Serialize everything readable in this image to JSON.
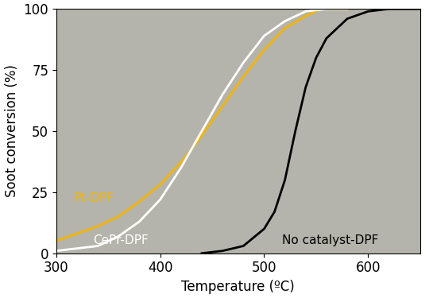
{
  "chart_data": {
    "type": "line",
    "x_label": "Temperature (ºC)",
    "y_label": "Soot conversion (%)",
    "xlim": [
      300,
      650
    ],
    "xticks": [
      300,
      400,
      500,
      600
    ],
    "ylim": [
      0,
      100
    ],
    "yticks": [
      0,
      25,
      50,
      75,
      100
    ],
    "grid": false,
    "series": [
      {
        "name": "Pt-DPF",
        "color": "#f5b400",
        "line_style": "solid",
        "x": [
          300,
          320,
          340,
          360,
          380,
          400,
          420,
          440,
          460,
          480,
          500,
          520,
          540,
          555,
          580
        ],
        "values": [
          5,
          8,
          11,
          15,
          21,
          28,
          37,
          48,
          60,
          72,
          83,
          92,
          97,
          100,
          100
        ]
      },
      {
        "name": "CePr-DPF",
        "color": "#ffffff",
        "line_style": "solid",
        "x": [
          300,
          320,
          340,
          360,
          380,
          400,
          420,
          440,
          460,
          480,
          500,
          520,
          540,
          560,
          580
        ],
        "values": [
          1,
          2,
          3,
          7,
          13,
          22,
          35,
          50,
          65,
          78,
          89,
          95,
          99,
          100,
          100
        ]
      },
      {
        "name": "No catalyst-DPF",
        "color": "#000000",
        "line_style": "solid",
        "x": [
          440,
          460,
          480,
          500,
          510,
          520,
          530,
          540,
          550,
          560,
          580,
          600,
          620,
          650
        ],
        "values": [
          0,
          1,
          3,
          10,
          17,
          30,
          50,
          68,
          80,
          88,
          96,
          99,
          100,
          100
        ]
      }
    ]
  }
}
